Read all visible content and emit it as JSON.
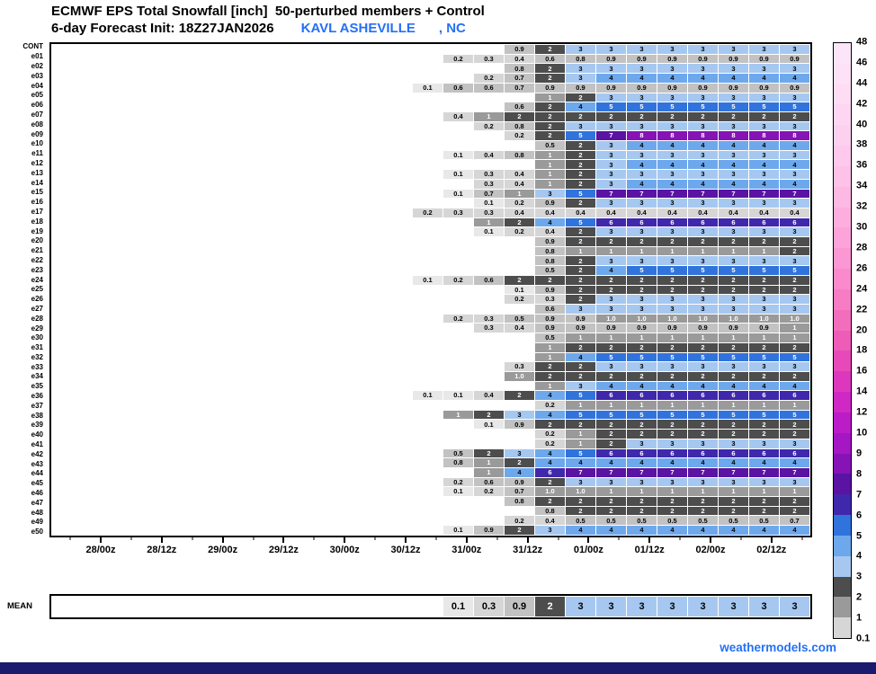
{
  "title": {
    "line1": "ECMWF EPS Total Snowfall [inch]  50-perturbed members + Control",
    "line2_prefix": "6-day Forecast Init: 18Z27JAN2026",
    "station": "KAVL ASHEVILLE",
    "station_suffix": ", NC"
  },
  "footer": {
    "brand": "weathermodels.com"
  },
  "colors": {
    "accent_blue": "#2470f5",
    "navy_bar": "#1a1a6e"
  },
  "chart_data": {
    "type": "heatmap",
    "title": "ECMWF EPS Total Snowfall [inch] 50-perturbed members + Control",
    "subtitle": "6-day Forecast Init: 18Z27JAN2026 KAVL ASHEVILLE , NC",
    "x_tick_labels": [
      "28/00z",
      "28/12z",
      "29/00z",
      "29/12z",
      "30/00z",
      "30/12z",
      "31/00z",
      "31/12z",
      "01/00z",
      "01/12z",
      "02/00z",
      "02/12z"
    ],
    "rows": [
      {
        "label": "CONT",
        "values": [
          "0.9",
          "2",
          "3",
          "3",
          "3",
          "3",
          "3",
          "3",
          "3",
          "3"
        ]
      },
      {
        "label": "e01",
        "values": [
          "0.2",
          "0.3",
          "0.4",
          "0.6",
          "0.8",
          "0.9",
          "0.9",
          "0.9",
          "0.9",
          "0.9",
          "0.9",
          "0.9"
        ]
      },
      {
        "label": "e02",
        "values": [
          "0.8",
          "2",
          "3",
          "3",
          "3",
          "3",
          "3",
          "3",
          "3",
          "3"
        ]
      },
      {
        "label": "e03",
        "values": [
          "0.2",
          "0.7",
          "2",
          "3",
          "4",
          "4",
          "4",
          "4",
          "4",
          "4",
          "4"
        ]
      },
      {
        "label": "e04",
        "values": [
          "0.1",
          "0.6",
          "0.6",
          "0.7",
          "0.9",
          "0.9",
          "0.9",
          "0.9",
          "0.9",
          "0.9",
          "0.9",
          "0.9",
          "0.9"
        ]
      },
      {
        "label": "e05",
        "values": [
          "1",
          "2",
          "3",
          "3",
          "3",
          "3",
          "3",
          "3",
          "3"
        ]
      },
      {
        "label": "e06",
        "values": [
          "0.6",
          "2",
          "4",
          "5",
          "5",
          "5",
          "5",
          "5",
          "5",
          "5"
        ]
      },
      {
        "label": "e07",
        "values": [
          "0.4",
          "1",
          "2",
          "2",
          "2",
          "2",
          "2",
          "2",
          "2",
          "2",
          "2",
          "2"
        ]
      },
      {
        "label": "e08",
        "values": [
          "0.2",
          "0.8",
          "2",
          "3",
          "3",
          "3",
          "3",
          "3",
          "3",
          "3",
          "3"
        ]
      },
      {
        "label": "e09",
        "values": [
          "0.2",
          "2",
          "5",
          "7",
          "8",
          "8",
          "8",
          "8",
          "8",
          "8"
        ]
      },
      {
        "label": "e10",
        "values": [
          "0.5",
          "2",
          "3",
          "4",
          "4",
          "4",
          "4",
          "4",
          "4"
        ]
      },
      {
        "label": "e11",
        "values": [
          "0.1",
          "0.4",
          "0.8",
          "1",
          "2",
          "3",
          "3",
          "3",
          "3",
          "3",
          "3",
          "3"
        ]
      },
      {
        "label": "e12",
        "values": [
          "1",
          "2",
          "3",
          "4",
          "4",
          "4",
          "4",
          "4",
          "4"
        ]
      },
      {
        "label": "e13",
        "values": [
          "0.1",
          "0.3",
          "0.4",
          "1",
          "2",
          "3",
          "3",
          "3",
          "3",
          "3",
          "3",
          "3"
        ]
      },
      {
        "label": "e14",
        "values": [
          "0.3",
          "0.4",
          "1",
          "2",
          "3",
          "4",
          "4",
          "4",
          "4",
          "4",
          "4"
        ]
      },
      {
        "label": "e15",
        "values": [
          "0.1",
          "0.7",
          "1",
          "3",
          "5",
          "7",
          "7",
          "7",
          "7",
          "7",
          "7",
          "7"
        ]
      },
      {
        "label": "e16",
        "values": [
          "0.1",
          "0.2",
          "0.9",
          "2",
          "3",
          "3",
          "3",
          "3",
          "3",
          "3",
          "3"
        ]
      },
      {
        "label": "e17",
        "values": [
          "0.2",
          "0.3",
          "0.3",
          "0.4",
          "0.4",
          "0.4",
          "0.4",
          "0.4",
          "0.4",
          "0.4",
          "0.4",
          "0.4",
          "0.4"
        ]
      },
      {
        "label": "e18",
        "values": [
          "1",
          "2",
          "4",
          "5",
          "6",
          "6",
          "6",
          "6",
          "6",
          "6",
          "6"
        ]
      },
      {
        "label": "e19",
        "values": [
          "0.1",
          "0.2",
          "0.4",
          "2",
          "3",
          "3",
          "3",
          "3",
          "3",
          "3",
          "3"
        ]
      },
      {
        "label": "e20",
        "values": [
          "0.9",
          "2",
          "2",
          "2",
          "2",
          "2",
          "2",
          "2",
          "2"
        ]
      },
      {
        "label": "e21",
        "values": [
          "0.8",
          "1",
          "1",
          "1",
          "1",
          "1",
          "1",
          "1",
          "2"
        ]
      },
      {
        "label": "e22",
        "values": [
          "0.8",
          "2",
          "3",
          "3",
          "3",
          "3",
          "3",
          "3",
          "3"
        ]
      },
      {
        "label": "e23",
        "values": [
          "0.5",
          "2",
          "4",
          "5",
          "5",
          "5",
          "5",
          "5",
          "5"
        ]
      },
      {
        "label": "e24",
        "values": [
          "0.1",
          "0.2",
          "0.6",
          "2",
          "2",
          "2",
          "2",
          "2",
          "2",
          "2",
          "2",
          "2",
          "2"
        ]
      },
      {
        "label": "e25",
        "values": [
          "0.1",
          "0.9",
          "2",
          "2",
          "2",
          "2",
          "2",
          "2",
          "2",
          "2"
        ]
      },
      {
        "label": "e26",
        "values": [
          "0.2",
          "0.3",
          "2",
          "3",
          "3",
          "3",
          "3",
          "3",
          "3",
          "3"
        ]
      },
      {
        "label": "e27",
        "values": [
          "0.6",
          "3",
          "3",
          "3",
          "3",
          "3",
          "3",
          "3",
          "3"
        ]
      },
      {
        "label": "e28",
        "values": [
          "0.2",
          "0.3",
          "0.5",
          "0.9",
          "0.9",
          "1.0",
          "1.0",
          "1.0",
          "1.0",
          "1.0",
          "1.0",
          "1.0"
        ]
      },
      {
        "label": "e29",
        "values": [
          "0.3",
          "0.4",
          "0.9",
          "0.9",
          "0.9",
          "0.9",
          "0.9",
          "0.9",
          "0.9",
          "0.9",
          "1"
        ]
      },
      {
        "label": "e30",
        "values": [
          "0.5",
          "1",
          "1",
          "1",
          "1",
          "1",
          "1",
          "1",
          "1"
        ]
      },
      {
        "label": "e31",
        "values": [
          "1",
          "2",
          "2",
          "2",
          "2",
          "2",
          "2",
          "2",
          "2"
        ]
      },
      {
        "label": "e32",
        "values": [
          "1",
          "4",
          "5",
          "5",
          "5",
          "5",
          "5",
          "5",
          "5"
        ]
      },
      {
        "label": "e33",
        "values": [
          "0.3",
          "2",
          "2",
          "3",
          "3",
          "3",
          "3",
          "3",
          "3",
          "3"
        ]
      },
      {
        "label": "e34",
        "values": [
          "1.0",
          "2",
          "2",
          "2",
          "2",
          "2",
          "2",
          "2",
          "2",
          "2"
        ]
      },
      {
        "label": "e35",
        "values": [
          "1",
          "3",
          "4",
          "4",
          "4",
          "4",
          "4",
          "4",
          "4"
        ]
      },
      {
        "label": "e36",
        "values": [
          "0.1",
          "0.1",
          "0.4",
          "2",
          "4",
          "5",
          "6",
          "6",
          "6",
          "6",
          "6",
          "6",
          "6"
        ]
      },
      {
        "label": "e37",
        "values": [
          "0.2",
          "1",
          "1",
          "1",
          "1",
          "1",
          "1",
          "1",
          "1"
        ]
      },
      {
        "label": "e38",
        "values": [
          "1",
          "2",
          "3",
          "4",
          "5",
          "5",
          "5",
          "5",
          "5",
          "5",
          "5",
          "5"
        ]
      },
      {
        "label": "e39",
        "values": [
          "0.1",
          "0.9",
          "2",
          "2",
          "2",
          "2",
          "2",
          "2",
          "2",
          "2",
          "2"
        ]
      },
      {
        "label": "e40",
        "values": [
          "0.2",
          "1",
          "2",
          "2",
          "2",
          "2",
          "2",
          "2",
          "2"
        ]
      },
      {
        "label": "e41",
        "values": [
          "0.2",
          "1",
          "2",
          "3",
          "3",
          "3",
          "3",
          "3",
          "3"
        ]
      },
      {
        "label": "e42",
        "values": [
          "0.5",
          "2",
          "3",
          "4",
          "5",
          "6",
          "6",
          "6",
          "6",
          "6",
          "6",
          "6"
        ]
      },
      {
        "label": "e43",
        "values": [
          "0.8",
          "1",
          "2",
          "4",
          "4",
          "4",
          "4",
          "4",
          "4",
          "4",
          "4",
          "4"
        ]
      },
      {
        "label": "e44",
        "values": [
          "1",
          "4",
          "6",
          "7",
          "7",
          "7",
          "7",
          "7",
          "7",
          "7",
          "7"
        ]
      },
      {
        "label": "e45",
        "values": [
          "0.2",
          "0.6",
          "0.9",
          "2",
          "3",
          "3",
          "3",
          "3",
          "3",
          "3",
          "3",
          "3"
        ]
      },
      {
        "label": "e46",
        "values": [
          "0.1",
          "0.2",
          "0.7",
          "1.0",
          "1.0",
          "1",
          "1",
          "1",
          "1",
          "1",
          "1",
          "1"
        ]
      },
      {
        "label": "e47",
        "values": [
          "0.8",
          "2",
          "2",
          "2",
          "2",
          "2",
          "2",
          "2",
          "2",
          "2"
        ]
      },
      {
        "label": "e48",
        "values": [
          "0.8",
          "2",
          "2",
          "2",
          "2",
          "2",
          "2",
          "2",
          "2"
        ]
      },
      {
        "label": "e49",
        "values": [
          "0.2",
          "0.4",
          "0.5",
          "0.5",
          "0.5",
          "0.5",
          "0.5",
          "0.5",
          "0.5",
          "0.7"
        ]
      },
      {
        "label": "e50",
        "values": [
          "0.1",
          "0.9",
          "2",
          "3",
          "4",
          "4",
          "4",
          "4",
          "4",
          "4",
          "4",
          "4"
        ]
      }
    ],
    "mean": {
      "label": "MEAN",
      "values": [
        "0.1",
        "0.3",
        "0.9",
        "2",
        "3",
        "3",
        "3",
        "3",
        "3",
        "3",
        "3",
        "3"
      ]
    },
    "colorbar": {
      "tick_labels_bottom_to_top": [
        "0.1",
        "1",
        "2",
        "3",
        "4",
        "5",
        "6",
        "7",
        "8",
        "9",
        "10",
        "12",
        "14",
        "16",
        "18",
        "20",
        "22",
        "24",
        "26",
        "28",
        "30",
        "32",
        "34",
        "36",
        "38",
        "40",
        "42",
        "44",
        "46",
        "48"
      ],
      "segment_colors_bottom_to_top": [
        "#d6d6d6",
        "#9a9a9a",
        "#4d4d4d",
        "#a6c8f0",
        "#6ea8ec",
        "#3173dc",
        "#4028ac",
        "#5a13a2",
        "#8613b6",
        "#a516c4",
        "#bb1cc8",
        "#cf28c4",
        "#dd38bd",
        "#e74ab8",
        "#ee5cb8",
        "#f36dbd",
        "#f77cc4",
        "#fa8acb",
        "#fb97d2",
        "#fca3d9",
        "#fdaede",
        "#fdb8e3",
        "#fec1e8",
        "#fec9ec",
        "#fed0ef",
        "#fed6f2",
        "#fddcf4",
        "#fde1f6",
        "#fce5f8"
      ]
    },
    "value_colors": {
      "bg": {
        "p1": "#e8e8e8",
        "p2": "#d6d6d6",
        "p5": "#c2c2c2",
        "1": "#9a9a9a",
        "2": "#4d4d4d",
        "3": "#a6c8f0",
        "4": "#6ea8ec",
        "5": "#3173dc",
        "6": "#4028ac",
        "7": "#5a13a2",
        "8": "#8613b6"
      },
      "fg": {
        "p1": "#000000",
        "p2": "#000000",
        "p5": "#000000",
        "1": "#ffffff",
        "2": "#ffffff",
        "3": "#000000",
        "4": "#000000",
        "5": "#ffffff",
        "6": "#ffffff",
        "7": "#ffffff",
        "8": "#ffffff"
      }
    }
  }
}
